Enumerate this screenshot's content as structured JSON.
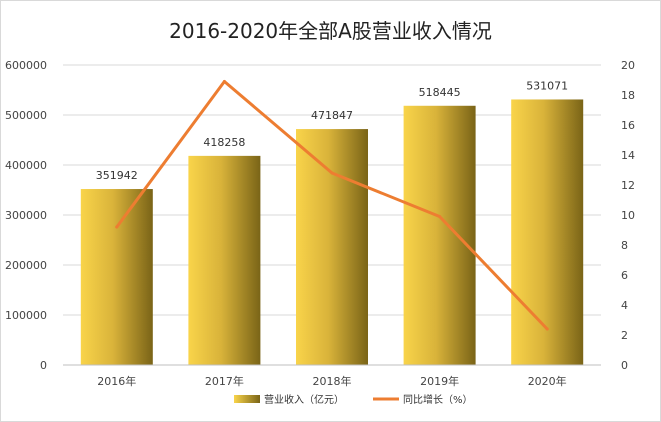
{
  "chart_data": {
    "type": "bar",
    "title": "2016-2020年全部A股营业收入情况",
    "categories": [
      "2016年",
      "2017年",
      "2018年",
      "2019年",
      "2020年"
    ],
    "series": [
      {
        "name": "营业收入（亿元）",
        "type": "bar",
        "axis": "left",
        "values": [
          351942,
          418258,
          471847,
          518445,
          531071
        ],
        "labels": [
          "351942",
          "418258",
          "471847",
          "518445",
          "531071"
        ]
      },
      {
        "name": "同比增长（%）",
        "type": "line",
        "axis": "right",
        "values": [
          9.2,
          18.9,
          12.8,
          9.9,
          2.4
        ]
      }
    ],
    "left_axis": {
      "min": 0,
      "max": 600000,
      "step": 100000,
      "ticks": [
        "0",
        "100000",
        "200000",
        "300000",
        "400000",
        "500000",
        "600000"
      ]
    },
    "right_axis": {
      "min": 0,
      "max": 20,
      "step": 2,
      "ticks": [
        "0",
        "2",
        "4",
        "6",
        "8",
        "10",
        "12",
        "14",
        "16",
        "18",
        "20"
      ]
    },
    "grid": true,
    "legend_position": "bottom",
    "colors": {
      "bar_light": "#f9d44a",
      "bar_dark": "#7a6417",
      "line": "#ed7d31",
      "grid": "#d9d9d9"
    }
  }
}
